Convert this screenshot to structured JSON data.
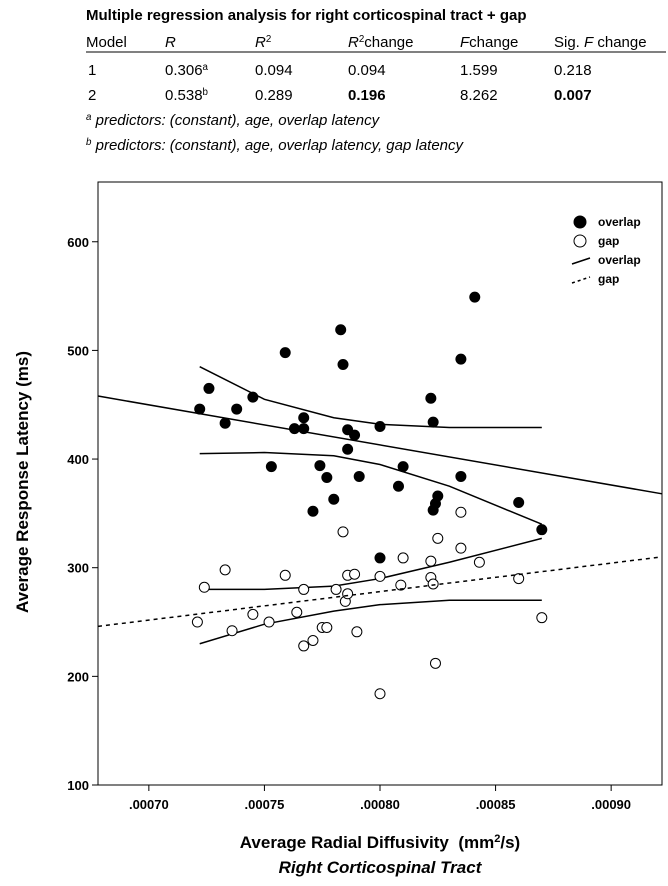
{
  "table": {
    "title": "Multiple regression analysis for right corticospinal tract + gap",
    "header": [
      [
        {
          "t": "Model"
        }
      ],
      [
        {
          "t": "R",
          "i": true
        }
      ],
      [
        {
          "t": "R",
          "i": true
        },
        {
          "t": "2",
          "sup": true
        }
      ],
      [
        {
          "t": "R",
          "i": true
        },
        {
          "t": "2",
          "sup": true
        },
        {
          "t": "change"
        }
      ],
      [
        {
          "t": "F",
          "i": true
        },
        {
          "t": "change"
        }
      ],
      [
        {
          "t": "Sig. "
        },
        {
          "t": "F",
          "i": true
        },
        {
          "t": " change"
        }
      ]
    ],
    "rows": [
      [
        [
          {
            "t": "1"
          }
        ],
        [
          {
            "t": "0.306"
          },
          {
            "t": "a",
            "sup": true
          }
        ],
        [
          {
            "t": "0.094"
          }
        ],
        [
          {
            "t": "0.094"
          }
        ],
        [
          {
            "t": "1.599"
          }
        ],
        [
          {
            "t": "0.218"
          }
        ]
      ],
      [
        [
          {
            "t": "2"
          }
        ],
        [
          {
            "t": "0.538"
          },
          {
            "t": "b",
            "sup": true
          }
        ],
        [
          {
            "t": "0.289"
          }
        ],
        [
          {
            "t": "0.196",
            "b": true
          }
        ],
        [
          {
            "t": "8.262"
          }
        ],
        [
          {
            "t": "0.007",
            "b": true
          }
        ]
      ]
    ],
    "footnotes": [
      [
        {
          "t": "a",
          "sup": true,
          "i": true
        },
        {
          "t": " predictors: (constant), age, overlap latency",
          "i": true
        }
      ],
      [
        {
          "t": "b",
          "sup": true,
          "i": true
        },
        {
          "t": " predictors: (constant), age, overlap latency, gap latency",
          "i": true
        }
      ]
    ]
  },
  "chart_data": {
    "type": "scatter",
    "y_label": "Average Response Latency (ms)",
    "x_label": [
      {
        "t": "Average Radial Diffusivity  (mm"
      },
      {
        "t": "2",
        "sup": true
      },
      {
        "t": "/s)"
      }
    ],
    "subtitle": "Right Corticospinal Tract",
    "xlim": [
      0.000678,
      0.000922
    ],
    "ylim": [
      100,
      655
    ],
    "xticks": [
      {
        "value": 0.0007,
        "label": ".00070"
      },
      {
        "value": 0.00075,
        "label": ".00075"
      },
      {
        "value": 0.0008,
        "label": ".00080"
      },
      {
        "value": 0.00085,
        "label": ".00085"
      },
      {
        "value": 0.0009,
        "label": ".00090"
      }
    ],
    "yticks": [
      100,
      200,
      300,
      400,
      500,
      600
    ],
    "legend": "upper right",
    "series": [
      {
        "name": "overlap",
        "style": "filled",
        "color": "#000000",
        "x": [
          0.000722,
          0.000726,
          0.000733,
          0.000738,
          0.000745,
          0.000753,
          0.000759,
          0.000763,
          0.000767,
          0.000767,
          0.000771,
          0.000774,
          0.000777,
          0.00078,
          0.000783,
          0.000784,
          0.000786,
          0.000786,
          0.000789,
          0.000791,
          0.0008,
          0.0008,
          0.000808,
          0.00081,
          0.000822,
          0.000823,
          0.000823,
          0.000824,
          0.000825,
          0.000835,
          0.000835,
          0.000841,
          0.00086,
          0.00087
        ],
        "values": [
          446,
          465,
          433,
          446,
          457,
          393,
          498,
          428,
          438,
          428,
          352,
          394,
          383,
          363,
          519,
          487,
          409,
          427,
          422,
          384,
          430,
          309,
          375,
          393,
          456,
          434,
          353,
          359,
          366,
          492,
          384,
          549,
          360,
          335
        ]
      },
      {
        "name": "gap",
        "style": "open",
        "color": "#000000",
        "x": [
          0.000721,
          0.000724,
          0.000733,
          0.000736,
          0.000745,
          0.000752,
          0.000759,
          0.000764,
          0.000767,
          0.000767,
          0.000771,
          0.000775,
          0.000777,
          0.000781,
          0.000784,
          0.000785,
          0.000786,
          0.000786,
          0.000789,
          0.00079,
          0.0008,
          0.0008,
          0.000809,
          0.00081,
          0.000822,
          0.000822,
          0.000823,
          0.000824,
          0.000825,
          0.000835,
          0.000835,
          0.000843,
          0.00086,
          0.00087
        ],
        "values": [
          250,
          282,
          298,
          242,
          257,
          250,
          293,
          259,
          228,
          280,
          233,
          245,
          245,
          280,
          333,
          269,
          293,
          276,
          294,
          241,
          292,
          184,
          284,
          309,
          291,
          306,
          285,
          212,
          327,
          351,
          318,
          305,
          290,
          254
        ]
      },
      {
        "name": "overlap",
        "style": "line",
        "color": "#000000",
        "x": [
          0.000678,
          0.000922
        ],
        "values": [
          458,
          368
        ]
      },
      {
        "name": "gap",
        "style": "dashed",
        "color": "#000000",
        "x": [
          0.000678,
          0.000922
        ],
        "values": [
          246,
          310
        ]
      }
    ],
    "bands": [
      {
        "x": [
          0.000722,
          0.00075,
          0.00078,
          0.0008,
          0.00083,
          0.00087
        ],
        "lower": [
          405,
          406,
          403,
          395,
          375,
          340
        ],
        "upper": [
          485,
          455,
          438,
          432,
          429,
          429
        ]
      },
      {
        "x": [
          0.000722,
          0.00075,
          0.00078,
          0.0008,
          0.00083,
          0.00087
        ],
        "lower": [
          230,
          248,
          260,
          266,
          270,
          270
        ],
        "upper": [
          280,
          280,
          283,
          290,
          305,
          327
        ]
      }
    ]
  }
}
